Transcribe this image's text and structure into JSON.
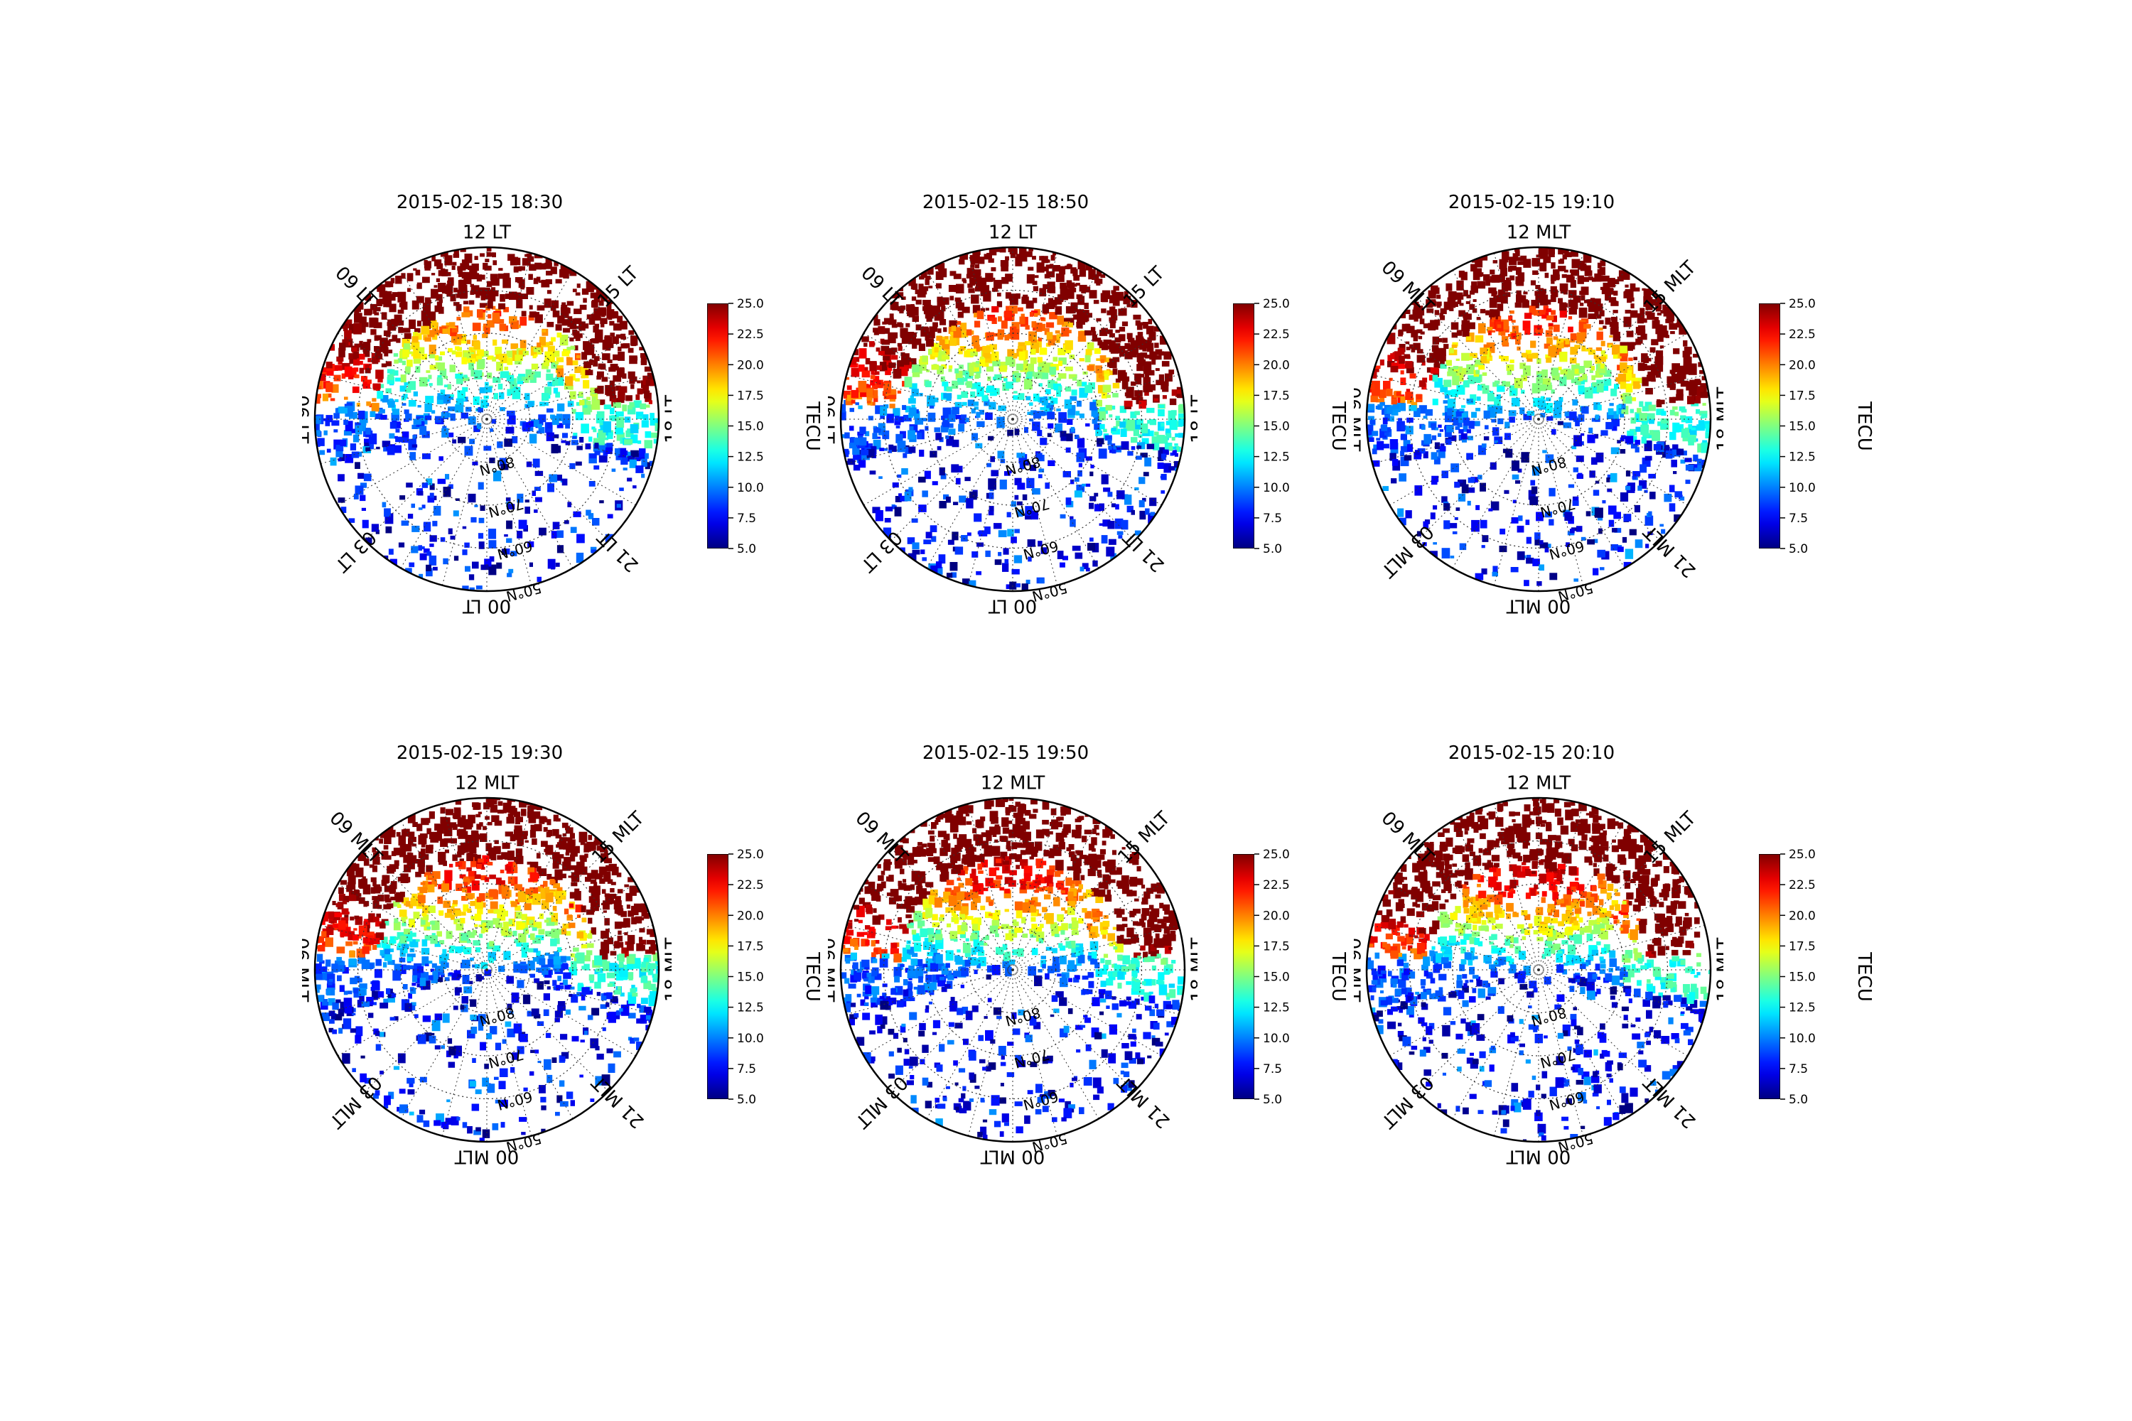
{
  "colorbar": {
    "label": "TECU",
    "vmin": 5.0,
    "vmax": 25.0,
    "ticks": [
      "5.0",
      "7.5",
      "10.0",
      "12.5",
      "15.0",
      "17.5",
      "20.0",
      "22.5",
      "25.0"
    ],
    "colormap": "jet"
  },
  "latitude_labels": [
    "80°N",
    "70°N",
    "60°N",
    "50°N"
  ],
  "panels": [
    {
      "title": "2015-02-15 18:30",
      "time_labels": {
        "t12": "12 LT",
        "t15": "15 LT",
        "t18": "18 LT",
        "t21": "21 LT",
        "t00": "00 LT",
        "t03": "03 LT",
        "t06": "06 LT",
        "t09": "09 LT"
      }
    },
    {
      "title": "2015-02-15 18:50",
      "time_labels": {
        "t12": "12 LT",
        "t15": "15 LT",
        "t18": "18 LT",
        "t21": "21 LT",
        "t00": "00 LT",
        "t03": "03 LT",
        "t06": "06 LT",
        "t09": "09 LT"
      }
    },
    {
      "title": "2015-02-15 19:10",
      "time_labels": {
        "t12": "12 MLT",
        "t15": "15 MLT",
        "t18": "18 MLT",
        "t21": "21 MLT",
        "t00": "00 MLT",
        "t03": "03 MLT",
        "t06": "06 MLT",
        "t09": "09 MLT"
      }
    },
    {
      "title": "2015-02-15 19:30",
      "time_labels": {
        "t12": "12 MLT",
        "t15": "15 MLT",
        "t18": "18 MLT",
        "t21": "21 MLT",
        "t00": "00 MLT",
        "t03": "03 MLT",
        "t06": "06 MLT",
        "t09": "09 MLT"
      }
    },
    {
      "title": "2015-02-15 19:50",
      "time_labels": {
        "t12": "12 MLT",
        "t15": "15 MLT",
        "t18": "18 MLT",
        "t21": "21 MLT",
        "t00": "00 MLT",
        "t03": "03 MLT",
        "t06": "06 MLT",
        "t09": "09 MLT"
      }
    },
    {
      "title": "2015-02-15 20:10",
      "time_labels": {
        "t12": "12 MLT",
        "t15": "15 MLT",
        "t18": "18 MLT",
        "t21": "21 MLT",
        "t00": "00 MLT",
        "t03": "03 MLT",
        "t06": "06 MLT",
        "t09": "09 MLT"
      }
    }
  ],
  "chart_data": {
    "type": "heatmap",
    "projection": "north polar",
    "quantity": "TECU",
    "latitude_circles": [
      80,
      70,
      60,
      50
    ],
    "time_sectors": [
      "00",
      "03",
      "06",
      "09",
      "12",
      "15",
      "18",
      "21"
    ],
    "panel_count": 6
  }
}
